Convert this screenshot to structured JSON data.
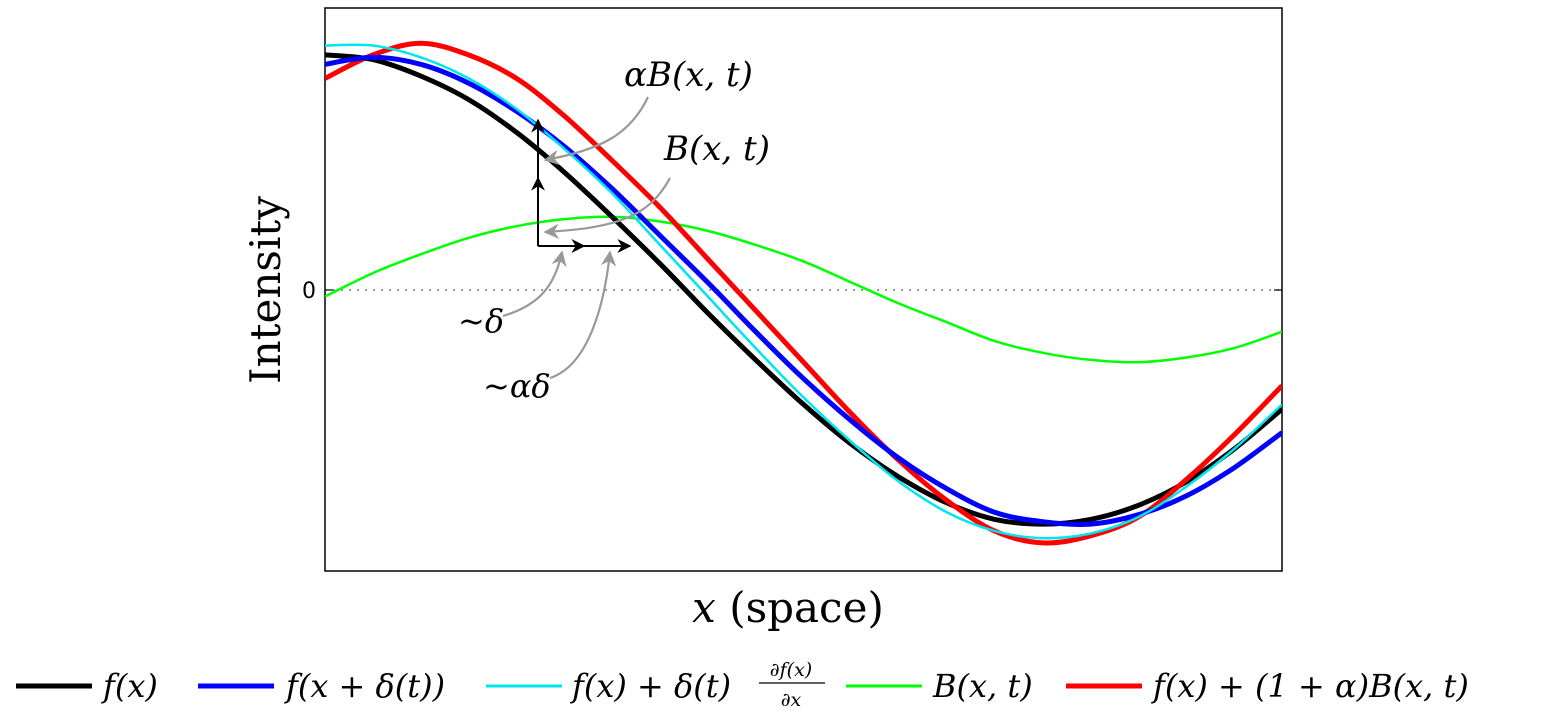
{
  "chart_data": {
    "type": "line",
    "xlabel_var": "x",
    "xlabel_rest": " (space)",
    "ylabel": "Intensity",
    "ytick_labels": [
      "0"
    ],
    "xlim": [
      0,
      1
    ],
    "ylim": [
      -1.2,
      1.2
    ],
    "grid": false,
    "zero_line": "dotted",
    "legend_position": "bottom",
    "series": [
      {
        "key": "f",
        "name": "f(x)",
        "color": "#000000",
        "x": [
          0,
          0.05,
          0.1,
          0.15,
          0.2,
          0.25,
          0.3,
          0.35,
          0.4,
          0.45,
          0.5,
          0.55,
          0.6,
          0.65,
          0.7,
          0.75,
          0.8,
          0.85,
          0.9,
          0.95,
          1
        ],
        "y": [
          1,
          0.98,
          0.91,
          0.81,
          0.67,
          0.5,
          0.31,
          0.11,
          -0.1,
          -0.3,
          -0.49,
          -0.66,
          -0.8,
          -0.91,
          -0.98,
          -1,
          -0.98,
          -0.92,
          -0.82,
          -0.68,
          -0.51
        ]
      },
      {
        "key": "fs",
        "name": "f(x + δ(t))",
        "color": "#0000ff",
        "x": [
          0,
          0.05,
          0.1,
          0.15,
          0.2,
          0.25,
          0.3,
          0.35,
          0.4,
          0.45,
          0.5,
          0.55,
          0.6,
          0.65,
          0.7,
          0.75,
          0.8,
          0.85,
          0.9,
          0.95,
          1
        ],
        "y": [
          0.96,
          0.99,
          0.96,
          0.88,
          0.76,
          0.61,
          0.43,
          0.23,
          0.03,
          -0.18,
          -0.38,
          -0.56,
          -0.72,
          -0.85,
          -0.95,
          -0.99,
          -1,
          -0.96,
          -0.88,
          -0.76,
          -0.61
        ]
      },
      {
        "key": "fa",
        "name": "f(x) + δ(t)∂f(x)/∂x",
        "color": "#00e5ee",
        "x": [
          0,
          0.05,
          0.1,
          0.15,
          0.2,
          0.25,
          0.3,
          0.35,
          0.4,
          0.45,
          0.5,
          0.55,
          0.6,
          0.65,
          0.7,
          0.75,
          0.8,
          0.85,
          0.9,
          0.95,
          1
        ],
        "y": [
          1.04,
          1.04,
          0.99,
          0.9,
          0.77,
          0.6,
          0.41,
          0.19,
          -0.03,
          -0.25,
          -0.46,
          -0.65,
          -0.82,
          -0.95,
          -1.03,
          -1.06,
          -1.04,
          -0.97,
          -0.84,
          -0.68,
          -0.49
        ]
      },
      {
        "key": "b",
        "name": "B(x, t)",
        "color": "#00ff00",
        "x": [
          0,
          0.05,
          0.1,
          0.15,
          0.2,
          0.25,
          0.3,
          0.35,
          0.4,
          0.45,
          0.5,
          0.55,
          0.6,
          0.65,
          0.7,
          0.75,
          0.8,
          0.85,
          0.9,
          0.95,
          1
        ],
        "y": [
          -0.03,
          0.07,
          0.15,
          0.22,
          0.27,
          0.3,
          0.31,
          0.29,
          0.25,
          0.19,
          0.12,
          0.03,
          -0.06,
          -0.14,
          -0.22,
          -0.27,
          -0.3,
          -0.31,
          -0.29,
          -0.25,
          -0.18
        ]
      },
      {
        "key": "fm",
        "name": "f(x) + (1 + α)B(x, t)",
        "color": "#ff0000",
        "x": [
          0,
          0.05,
          0.1,
          0.15,
          0.2,
          0.25,
          0.3,
          0.35,
          0.4,
          0.45,
          0.5,
          0.55,
          0.6,
          0.65,
          0.7,
          0.75,
          0.8,
          0.85,
          0.9,
          0.95,
          1
        ],
        "y": [
          0.9,
          1.0,
          1.05,
          1.0,
          0.9,
          0.74,
          0.55,
          0.35,
          0.13,
          -0.09,
          -0.31,
          -0.53,
          -0.73,
          -0.9,
          -1.03,
          -1.08,
          -1.05,
          -0.97,
          -0.81,
          -0.62,
          -0.41
        ]
      }
    ],
    "legend_parts": [
      {
        "key": "f",
        "pre": "f(x)"
      },
      {
        "key": "fs",
        "pre": "f(x + δ(t))"
      },
      {
        "key": "fa",
        "pre": "f(x) + δ(t)",
        "num": "∂f(x)",
        "den": "∂x"
      },
      {
        "key": "b",
        "pre": "B(x, t)"
      },
      {
        "key": "fm",
        "pre": "f(x) + (1 + α)B(x, t)"
      }
    ],
    "annotations": {
      "alphaB": "αB(x, t)",
      "B": "B(x, t)",
      "delta": "~δ",
      "alphadelta": "~αδ"
    },
    "annotation_color": "#999999"
  }
}
